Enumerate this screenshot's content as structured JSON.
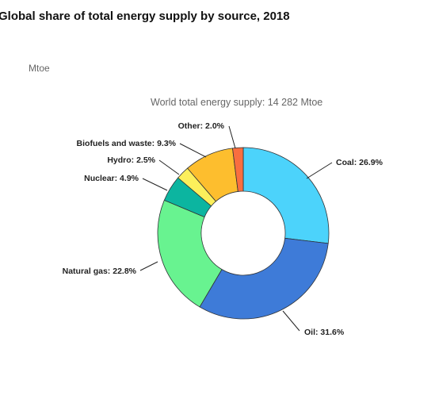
{
  "title": "Global share of total energy supply by source, 2018",
  "unit_label": "Mtoe",
  "subtitle": "World total energy supply: 14 282 Mtoe",
  "chart_data": {
    "type": "pie",
    "variant": "donut",
    "title": "Global share of total energy supply by source, 2018",
    "total_label": "World total energy supply: 14 282 Mtoe",
    "unit": "Mtoe",
    "slices": [
      {
        "name": "Coal",
        "value": 26.9,
        "label": "Coal: 26.9%",
        "color": "#4cd3fb"
      },
      {
        "name": "Oil",
        "value": 31.6,
        "label": "Oil: 31.6%",
        "color": "#3e7bd8"
      },
      {
        "name": "Natural gas",
        "value": 22.8,
        "label": "Natural gas: 22.8%",
        "color": "#68f390"
      },
      {
        "name": "Nuclear",
        "value": 4.9,
        "label": "Nuclear: 4.9%",
        "color": "#0cb5a0"
      },
      {
        "name": "Hydro",
        "value": 2.5,
        "label": "Hydro: 2.5%",
        "color": "#fcef5b"
      },
      {
        "name": "Biofuels and waste",
        "value": 9.3,
        "label": "Biofuels and waste: 9.3%",
        "color": "#fdbe2e"
      },
      {
        "name": "Other",
        "value": 2.0,
        "label": "Other: 2.0%",
        "color": "#f96e3f"
      }
    ]
  }
}
